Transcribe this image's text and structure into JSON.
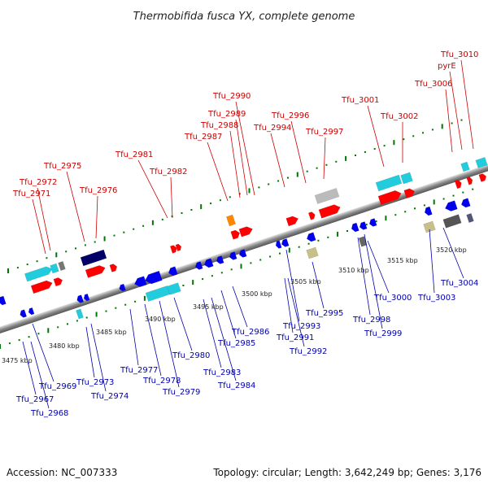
{
  "title": "Thermobifida fusca YX, complete genome",
  "footer": {
    "accession": "Accession: NC_007333",
    "summary": "Topology: circular; Length: 3,642,249 bp; Genes: 3,176"
  },
  "scale_labels": [
    "3475 kbp",
    "3480 kbp",
    "3485 kbp",
    "3490 kbp",
    "3495 kbp",
    "3500 kbp",
    "3505 kbp",
    "3510 kbp",
    "3515 kbp",
    "3520 kbp"
  ],
  "top_labels": [
    "Tfu_3010",
    "pyrE",
    "Tfu_3006",
    "Tfu_3001",
    "Tfu_3002",
    "Tfu_2990",
    "Tfu_2989",
    "Tfu_2988",
    "Tfu_2987",
    "Tfu_2994",
    "Tfu_2996",
    "Tfu_2997",
    "Tfu_2981",
    "Tfu_2982",
    "Tfu_2975",
    "Tfu_2972",
    "Tfu_2971",
    "Tfu_2976"
  ],
  "bottom_labels": [
    "Tfu_3004",
    "Tfu_3003",
    "Tfu_3000",
    "Tfu_2998",
    "Tfu_2999",
    "Tfu_2995",
    "Tfu_2993",
    "Tfu_2991",
    "Tfu_2992",
    "Tfu_2986",
    "Tfu_2985",
    "Tfu_2983",
    "Tfu_2984",
    "Tfu_2980",
    "Tfu_2977",
    "Tfu_2978",
    "Tfu_2979",
    "Tfu_2973",
    "Tfu_2974",
    "Tfu_2969",
    "Tfu_2967",
    "Tfu_2968"
  ],
  "colors": {
    "forward": "#ff0000",
    "reverse": "#0000ee",
    "cyan": "#22ccdd",
    "navy": "#000066",
    "tan": "#c8c088",
    "grey": "#555555",
    "silver": "#bbbbbb",
    "orange": "#ff8800",
    "ticks": "#007700"
  }
}
